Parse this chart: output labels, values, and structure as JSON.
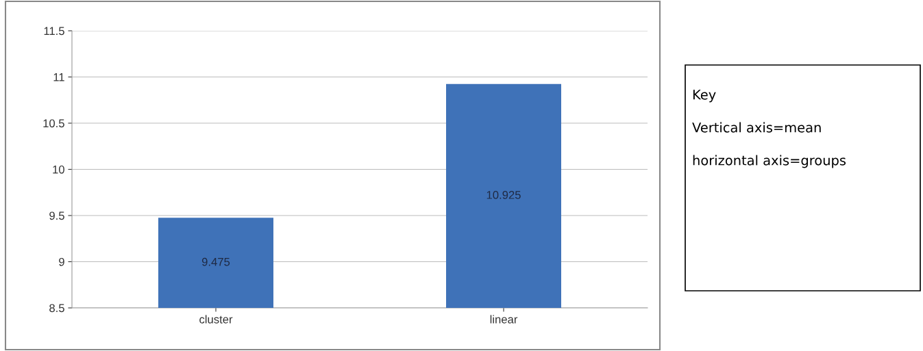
{
  "chart_data": {
    "type": "bar",
    "categories": [
      "cluster",
      "linear"
    ],
    "values": [
      9.475,
      10.925
    ],
    "color": "#3f72b8",
    "data_labels": true,
    "ylim": [
      8.5,
      11.5
    ],
    "yticks": [
      8.5,
      9,
      9.5,
      10,
      10.5,
      11,
      11.5
    ],
    "grid": "y",
    "annotations": [
      "Key",
      "Vertical axis=mean",
      "horizontal axis=groups"
    ]
  }
}
